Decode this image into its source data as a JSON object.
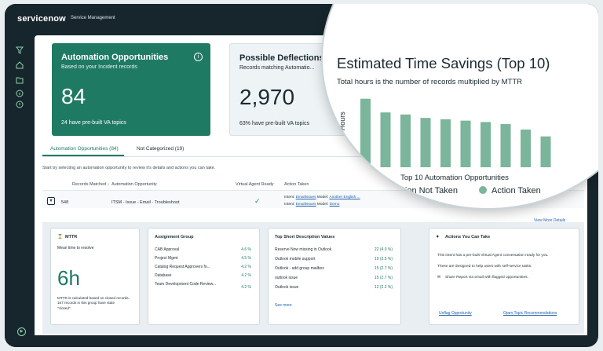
{
  "header": {
    "brand": "servicenow",
    "product": "Service Management"
  },
  "cards": {
    "automation": {
      "title": "Automation Opportunities",
      "subtitle": "Based on your Incident records",
      "value": "84",
      "footer": "24 have pre-built VA topics"
    },
    "deflections": {
      "title": "Possible Deflections",
      "subtitle": "Records matching Automatio...",
      "value": "2,970",
      "footer": "63% have pre-built VA topics"
    }
  },
  "tabs": [
    {
      "label": "Automation Opportunities (84)"
    },
    {
      "label": "Not Categorized (19)"
    }
  ],
  "hint": "Start by selecting an automation opportunity to review it's details and actions you can take.",
  "table": {
    "headers": [
      "Records Matched ↓",
      "Automation Opportunity",
      "Virtual Agent Ready",
      "Action Taken"
    ],
    "row": {
      "records": "548",
      "opportunity": "ITSM - Issue - Email - Troubleshoot",
      "action_line1_prefix": "Intent:",
      "action_line1_link": "EmailIssues",
      "action_line1_mid": "Model:",
      "action_line1_link2": "Another English ...",
      "action_line2_prefix": "Intent:",
      "action_line2_link": "EmailIssues",
      "action_line2_mid": "Model:",
      "action_line2_link2": "Demo"
    }
  },
  "view_more": "View More Details",
  "mttr": {
    "title": "MTTR",
    "subtitle": "Mean time to resolve",
    "value": "6h",
    "footer": "MTTR is calculated based on closed records. 167 records in this group have state \"closed\"."
  },
  "assignment": {
    "title": "Assignment Group",
    "items": [
      {
        "name": "CAB Approval",
        "value": "4.6 %"
      },
      {
        "name": "Project Mgmt",
        "value": "4.5 %"
      },
      {
        "name": "Catalog Request Approvers fo...",
        "value": "4.2 %"
      },
      {
        "name": "Database",
        "value": "4.2 %"
      },
      {
        "name": "Team Development Code Review...",
        "value": "4.2 %"
      }
    ]
  },
  "short_desc": {
    "title": "Top Short Description Values",
    "items": [
      {
        "name": "Reserve Now missing in Outlook",
        "value": "22 (4.0 %)"
      },
      {
        "name": "Outlook mobile support",
        "value": "19 (3.5 %)"
      },
      {
        "name": "Outlook - add group mailbox",
        "value": "15 (2.7 %)"
      },
      {
        "name": "outlook issue",
        "value": "15 (2.7 %)"
      },
      {
        "name": "Outlook issue",
        "value": "12 (2.2 %)"
      }
    ],
    "see_more": "See more"
  },
  "actions": {
    "title": "Actions You Can Take",
    "line1": "This intent has a pre-built Virtual Agent conversation ready for you.",
    "line2": "These are designed to help users with self-service tasks.",
    "line3": "Share Report via email with flagged opportunities.",
    "unflag": "Unflag Opportunity",
    "open_topic": "Open Topic Recommendations"
  },
  "colors": {
    "accent": "#1f7a63",
    "bar": "#7bb59c",
    "not_taken": "#1a3a4a"
  },
  "chart_data": {
    "type": "bar",
    "title": "Estimated Time Savings (Top 10)",
    "subtitle": "Total hours is the number of records multiplied by MTTR",
    "xlabel": "Top 10 Automation Opportunities",
    "ylabel": "Total Hours",
    "legend": [
      "Action Not Taken",
      "Action Taken"
    ],
    "legend_position": "bottom",
    "series": [
      {
        "name": "Action Taken",
        "values": [
          100,
          80,
          77,
          72,
          70,
          68,
          66,
          63,
          55,
          45
        ]
      }
    ],
    "ylim": [
      0,
      110
    ],
    "grid": false
  }
}
